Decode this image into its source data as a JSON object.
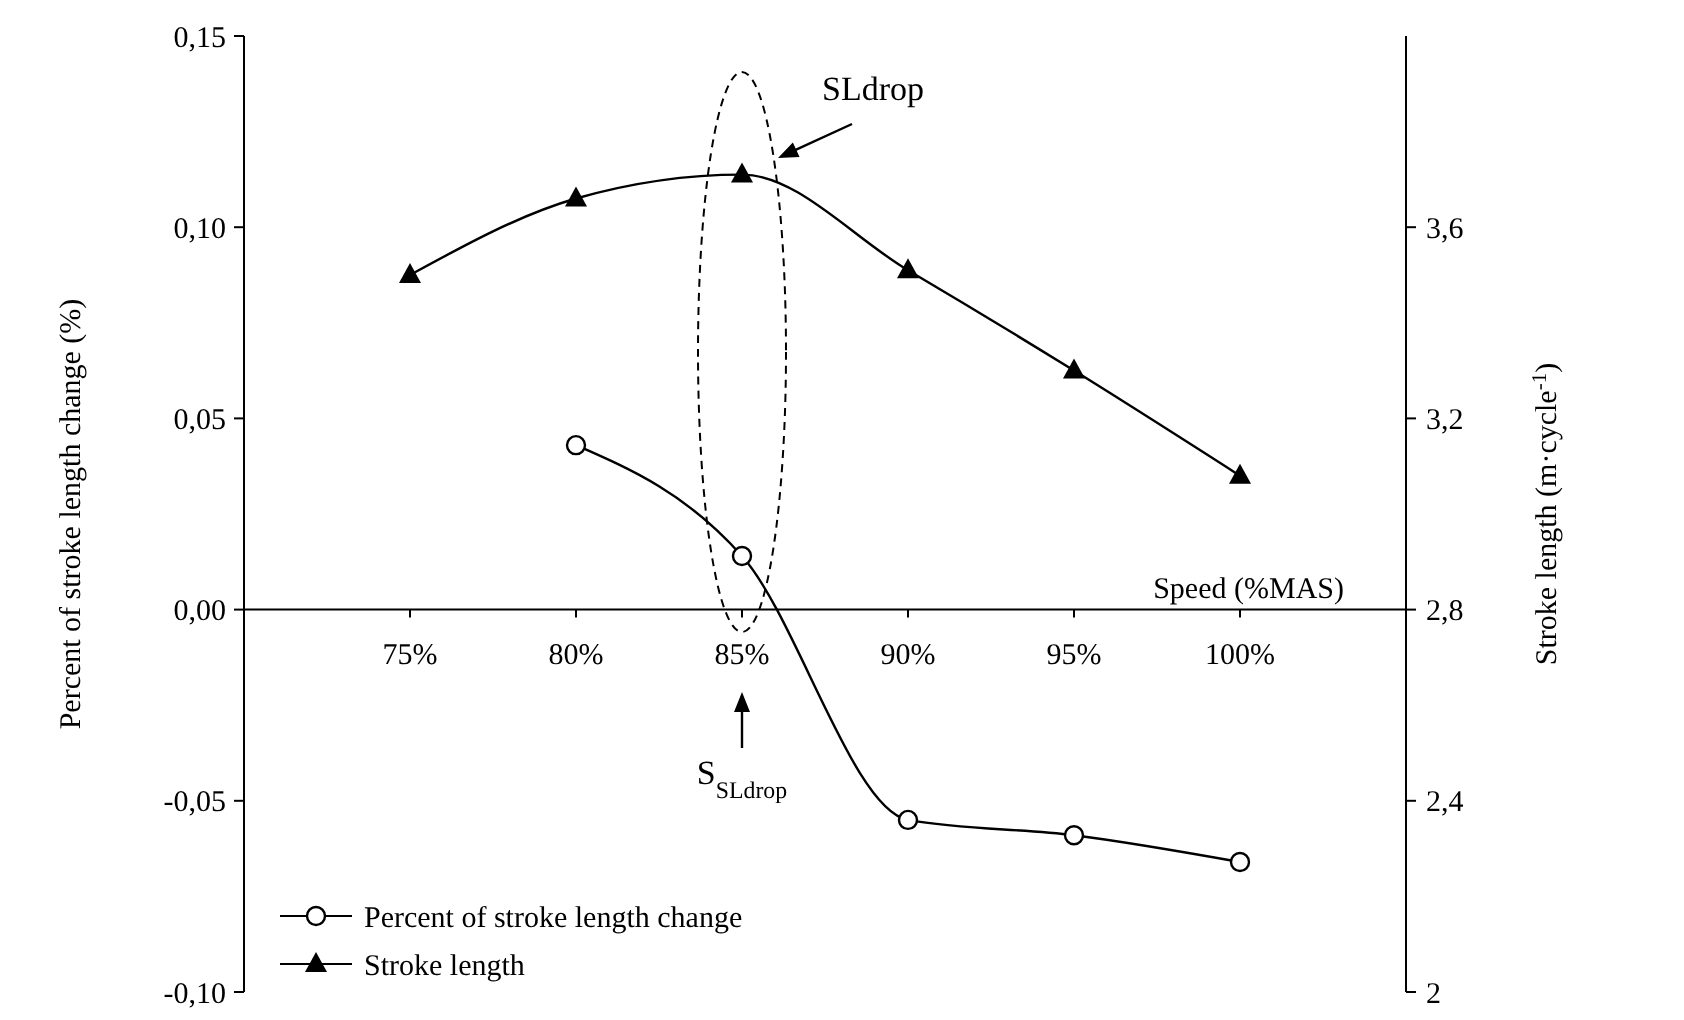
{
  "chart_data": {
    "type": "line",
    "xlabel": "Speed (%MAS)",
    "ylabel": "Percent of stroke length change (%)",
    "y2label": "Stroke length (m·cycle$^{-1}$)",
    "categories": [
      "75%",
      "80%",
      "85%",
      "90%",
      "95%",
      "100%"
    ],
    "series": [
      {
        "name": "Percent of stroke length change",
        "color": "#000000",
        "marker": "circle",
        "values": [
          null,
          0.043,
          0.014,
          -0.055,
          -0.059,
          -0.066
        ]
      },
      {
        "name": "Stroke length",
        "color": "#000000",
        "marker": "triangle",
        "axis": "y2",
        "values": [
          3.5,
          3.66,
          3.71,
          3.51,
          3.3,
          3.08
        ]
      }
    ],
    "ylim": [
      -0.1,
      0.15
    ],
    "yticks": [
      {
        "value": -0.1,
        "label": "-0,10"
      },
      {
        "value": -0.05,
        "label": "-0,05"
      },
      {
        "value": 0,
        "label": "0,00"
      },
      {
        "value": 0.05,
        "label": "0,05"
      },
      {
        "value": 0.1,
        "label": "0,10"
      },
      {
        "value": 0.15,
        "label": "0,15"
      }
    ],
    "y2lim": [
      2,
      4
    ],
    "y2ticks": [
      2,
      {
        "value": 2.4,
        "label": "2,4"
      },
      {
        "value": 2.8,
        "label": "2,8"
      },
      {
        "value": 3.2,
        "label": "3,2"
      },
      {
        "value": 3.6,
        "label": "3,6"
      }
    ],
    "annotations": [
      "SLdrop",
      "S$_{SLdrop}$"
    ],
    "legend": "bottom left",
    "grid": false
  }
}
